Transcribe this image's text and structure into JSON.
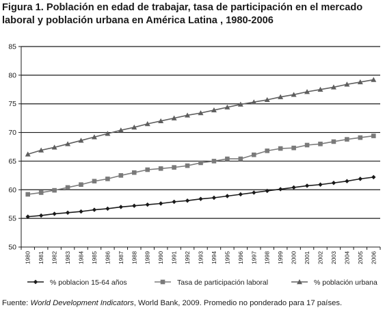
{
  "title_line1": "Figura 1. Población en edad de trabajar, tasa de participación en el mercado",
  "title_line2": "laboral y población urbana en América Latina , 1980-2006",
  "source": {
    "prefix": "Fuente: ",
    "italic": "World Development Indicators",
    "suffix": ", World Bank, 2009. Promedio no ponderado para 17 países."
  },
  "chart_data": {
    "type": "line",
    "x": [
      "1980",
      "1981",
      "1982",
      "1983",
      "1984",
      "1985",
      "1986",
      "1987",
      "1988",
      "1989",
      "1990",
      "1991",
      "1992",
      "1993",
      "1994",
      "1995",
      "1996",
      "1997",
      "1998",
      "1999",
      "2000",
      "2001",
      "2002",
      "2003",
      "2004",
      "2005",
      "2006"
    ],
    "ylim": [
      50,
      85
    ],
    "yticks": [
      50,
      55,
      60,
      65,
      70,
      75,
      80,
      85
    ],
    "grid": "horizontal",
    "legend_position": "bottom",
    "series": [
      {
        "name": "% poblacion 15-64 años",
        "marker": "diamond",
        "color": "#1a1a1a",
        "values": [
          55.3,
          55.5,
          55.8,
          56.0,
          56.2,
          56.5,
          56.7,
          57.0,
          57.2,
          57.4,
          57.6,
          57.9,
          58.1,
          58.4,
          58.6,
          58.9,
          59.2,
          59.5,
          59.8,
          60.1,
          60.4,
          60.7,
          60.9,
          61.2,
          61.5,
          61.9,
          62.2
        ]
      },
      {
        "name": "Tasa de participación laboral",
        "marker": "square",
        "color": "#7a7a7a",
        "values": [
          59.2,
          59.5,
          59.9,
          60.4,
          60.9,
          61.5,
          61.9,
          62.5,
          63.0,
          63.5,
          63.7,
          63.9,
          64.2,
          64.7,
          65.0,
          65.4,
          65.4,
          66.1,
          66.8,
          67.2,
          67.3,
          67.8,
          68.0,
          68.4,
          68.8,
          69.1,
          69.4
        ]
      },
      {
        "name": "% población urbana",
        "marker": "triangle",
        "color": "#5e5e5e",
        "values": [
          66.2,
          66.9,
          67.4,
          68.0,
          68.6,
          69.2,
          69.8,
          70.4,
          70.9,
          71.5,
          72.0,
          72.5,
          73.0,
          73.4,
          73.9,
          74.4,
          74.9,
          75.3,
          75.7,
          76.2,
          76.6,
          77.1,
          77.5,
          77.9,
          78.4,
          78.8,
          79.2
        ]
      }
    ]
  }
}
